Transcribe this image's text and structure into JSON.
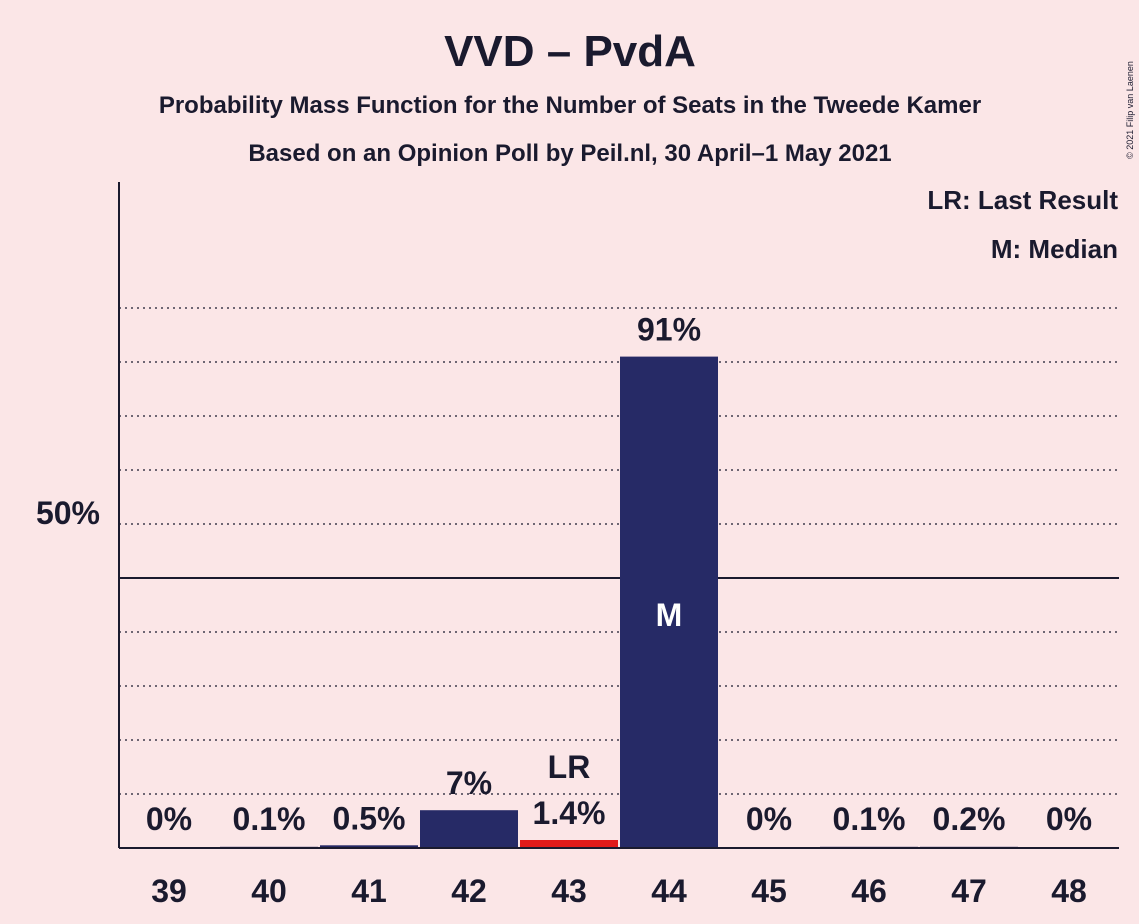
{
  "chart_data": {
    "type": "bar",
    "title": "VVD – PvdA",
    "subtitle_line1": "Probability Mass Function for the Number of Seats in the Tweede Kamer",
    "subtitle_line2": "Based on an Opinion Poll by Peil.nl, 30 April–1 May 2021",
    "copyright": "© 2021 Filip van Laenen",
    "categories": [
      "39",
      "40",
      "41",
      "42",
      "43",
      "44",
      "45",
      "46",
      "47",
      "48"
    ],
    "values": [
      0,
      0.1,
      0.5,
      7,
      1.4,
      91,
      0,
      0.1,
      0.2,
      0
    ],
    "value_labels": [
      "0%",
      "0.1%",
      "0.5%",
      "7%",
      "1.4%",
      "91%",
      "0%",
      "0.1%",
      "0.2%",
      "0%"
    ],
    "last_result": "43",
    "median": "44",
    "last_result_marker": "LR",
    "median_marker": "M",
    "ylim": [
      0,
      100
    ],
    "ytick_label": "50%",
    "ytick_value": 50,
    "legend": [
      "LR: Last Result",
      "M: Median"
    ],
    "legend_position": "top-right",
    "colors": {
      "bar": "#262a66",
      "last_result_bar": "#e01a1a",
      "background": "#fbe6e7",
      "text": "#1a1a2e"
    }
  }
}
